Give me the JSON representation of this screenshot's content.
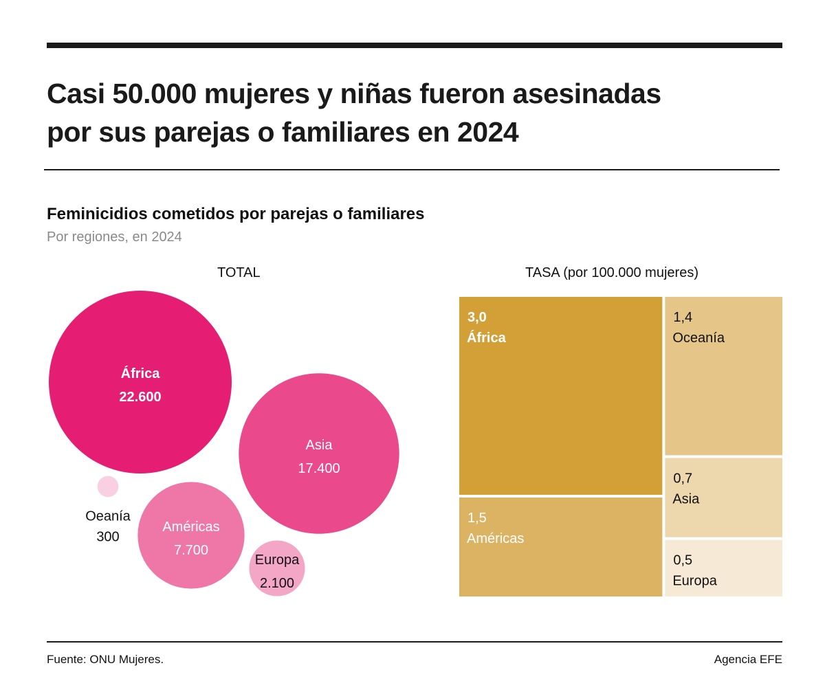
{
  "header": {
    "title_line1": "Casi 50.000 mujeres y niñas fueron asesinadas",
    "title_line2": "por sus parejas o familiares en 2024",
    "subtitle": "Feminicidios cometidos por parejas o familiares",
    "subsubtitle": "Por regiones, en 2024"
  },
  "footer": {
    "source": "Fuente: ONU Mujeres.",
    "credit": "Agencia EFE"
  },
  "chart_data": [
    {
      "type": "bubble",
      "title": "TOTAL",
      "items": [
        {
          "label": "África",
          "value": 22600,
          "value_label": "22.600",
          "color": "#e61e73",
          "text_color": "#ffffff",
          "bold": true
        },
        {
          "label": "Asia",
          "value": 17400,
          "value_label": "17.400",
          "color": "#ea4a8c",
          "text_color": "#ffffff",
          "bold": false
        },
        {
          "label": "Américas",
          "value": 7700,
          "value_label": "7.700",
          "color": "#ef77a8",
          "text_color": "#ffffff",
          "bold": false
        },
        {
          "label": "Europa",
          "value": 2100,
          "value_label": "2.100",
          "color": "#f4a6c6",
          "text_color": "#111111",
          "bold": false
        },
        {
          "label": "Oeanía",
          "value": 300,
          "value_label": "300",
          "color": "#f9d0e2",
          "text_color": "#111111",
          "bold": false
        }
      ]
    },
    {
      "type": "treemap",
      "title": "TASA (por 100.000 mujeres)",
      "items": [
        {
          "label": "África",
          "value": 3.0,
          "value_label": "3,0",
          "color": "#d3a038",
          "text_color": "#ffffff",
          "bold": true
        },
        {
          "label": "Américas",
          "value": 1.5,
          "value_label": "1,5",
          "color": "#dbb362",
          "text_color": "#ffffff",
          "bold": false
        },
        {
          "label": "Oceanía",
          "value": 1.4,
          "value_label": "1,4",
          "color": "#e5c688",
          "text_color": "#111111",
          "bold": false
        },
        {
          "label": "Asia",
          "value": 0.7,
          "value_label": "0,7",
          "color": "#edd8ad",
          "text_color": "#111111",
          "bold": false
        },
        {
          "label": "Europa",
          "value": 0.5,
          "value_label": "0,5",
          "color": "#f6ead6",
          "text_color": "#111111",
          "bold": false
        }
      ]
    }
  ]
}
